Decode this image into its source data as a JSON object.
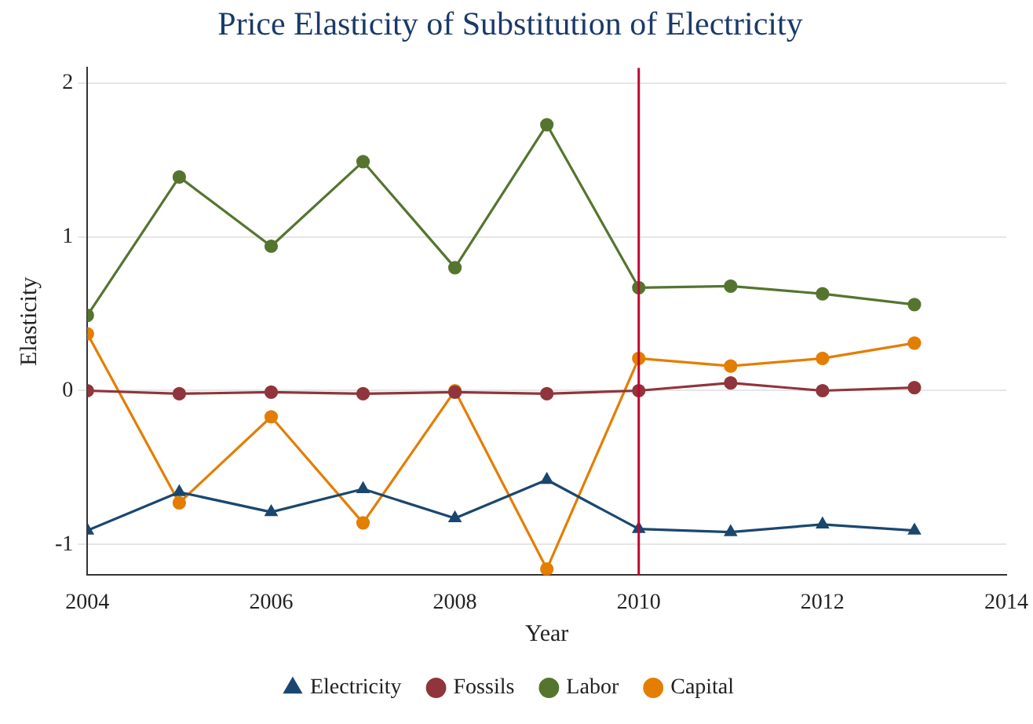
{
  "chart_data": {
    "type": "line",
    "title": "Price Elasticity of Substitution of Electricity",
    "xlabel": "Year",
    "ylabel": "Elasticity",
    "x": [
      2004,
      2005,
      2006,
      2007,
      2008,
      2009,
      2010,
      2011,
      2012,
      2013
    ],
    "series": [
      {
        "name": "Electricity",
        "color": "#1a476f",
        "marker": "triangle",
        "values": [
          -0.91,
          -0.66,
          -0.79,
          -0.64,
          -0.83,
          -0.58,
          -0.9,
          -0.92,
          -0.87,
          -0.91
        ]
      },
      {
        "name": "Fossils",
        "color": "#90353b",
        "marker": "circle",
        "values": [
          0.0,
          -0.02,
          -0.01,
          -0.02,
          -0.01,
          -0.02,
          0.0,
          0.05,
          0.0,
          0.02
        ]
      },
      {
        "name": "Labor",
        "color": "#55752f",
        "marker": "circle",
        "values": [
          0.49,
          1.39,
          0.94,
          1.49,
          0.8,
          1.73,
          0.67,
          0.68,
          0.63,
          0.56
        ]
      },
      {
        "name": "Capital",
        "color": "#e37e00",
        "marker": "circle",
        "values": [
          0.37,
          -0.73,
          -0.17,
          -0.86,
          0.0,
          -1.16,
          0.21,
          0.16,
          0.21,
          0.31
        ]
      }
    ],
    "xlim": [
      2004,
      2014
    ],
    "xticks": [
      2004,
      2006,
      2008,
      2010,
      2012,
      2014
    ],
    "ylim": [
      -1.2,
      2.1
    ],
    "yticks": [
      -1,
      0,
      1,
      2
    ],
    "grid": "y",
    "legend": "bottom",
    "line_style": "solid",
    "ref_lines": [
      {
        "axis": "x",
        "value": 2010,
        "color": "#c10534"
      }
    ]
  }
}
